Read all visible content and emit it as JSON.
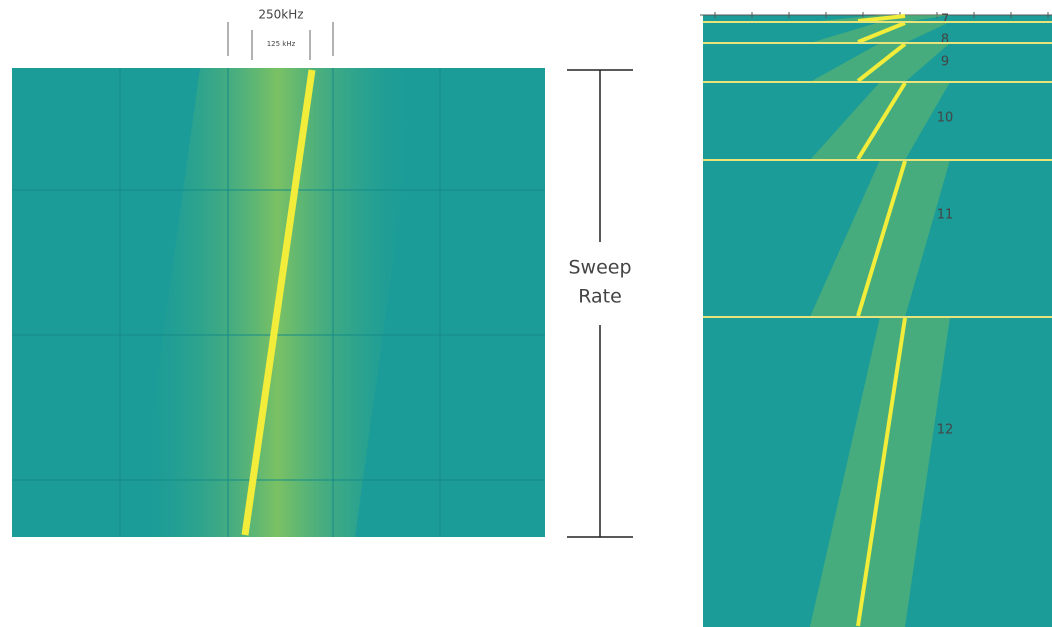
{
  "left_panel": {
    "bandwidth_outer": "250kHz",
    "bandwidth_inner": "125 kHz",
    "sweep_rate": [
      "Sweep",
      "Rate"
    ]
  },
  "right_panel": {
    "spreading_factors": [
      "7",
      "8",
      "9",
      "10",
      "11",
      "12"
    ]
  }
}
